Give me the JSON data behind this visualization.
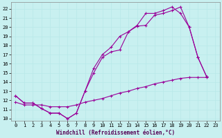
{
  "background_color": "#c8f0f0",
  "grid_color": "#aadddd",
  "line_color": "#990099",
  "xlim": [
    -0.5,
    23.5
  ],
  "ylim": [
    9.8,
    22.7
  ],
  "xticks": [
    0,
    1,
    2,
    3,
    4,
    5,
    6,
    7,
    8,
    9,
    10,
    11,
    12,
    13,
    14,
    15,
    16,
    17,
    18,
    19,
    20,
    21,
    22,
    23
  ],
  "yticks": [
    10,
    11,
    12,
    13,
    14,
    15,
    16,
    17,
    18,
    19,
    20,
    21,
    22
  ],
  "line1_x": [
    0,
    1,
    2,
    3,
    4,
    5,
    6,
    7,
    8,
    9,
    10,
    11,
    12,
    13,
    14,
    15,
    16,
    17,
    18,
    19,
    20,
    21,
    22
  ],
  "line1_y": [
    12.5,
    11.7,
    11.7,
    11.1,
    10.6,
    10.6,
    10.0,
    10.6,
    13.0,
    15.0,
    16.7,
    17.3,
    17.5,
    19.5,
    20.1,
    20.2,
    21.3,
    21.5,
    21.8,
    22.2,
    20.0,
    16.7,
    14.6
  ],
  "line2_x": [
    0,
    1,
    2,
    3,
    4,
    5,
    6,
    7,
    8,
    9,
    10,
    11,
    12,
    13,
    14,
    15,
    16,
    17,
    18,
    19,
    20,
    21,
    22
  ],
  "line2_y": [
    12.5,
    11.7,
    11.7,
    11.1,
    10.6,
    10.6,
    10.0,
    10.6,
    13.0,
    15.5,
    17.0,
    17.8,
    19.0,
    19.5,
    20.2,
    21.5,
    21.5,
    21.8,
    22.2,
    21.5,
    20.0,
    16.7,
    14.6
  ],
  "line3_x": [
    0,
    1,
    2,
    3,
    4,
    5,
    6,
    7,
    8,
    9,
    10,
    11,
    12,
    13,
    14,
    15,
    16,
    17,
    18,
    19,
    20,
    21,
    22
  ],
  "line3_y": [
    11.8,
    11.5,
    11.5,
    11.5,
    11.3,
    11.3,
    11.3,
    11.5,
    11.8,
    12.0,
    12.2,
    12.5,
    12.8,
    13.0,
    13.3,
    13.5,
    13.8,
    14.0,
    14.2,
    14.4,
    14.5,
    14.5,
    14.5
  ],
  "xlabel": "Windchill (Refroidissement éolien,°C)",
  "xlabel_fontsize": 5.5,
  "tick_fontsize": 5.0,
  "markersize": 2.0,
  "linewidth": 0.8
}
